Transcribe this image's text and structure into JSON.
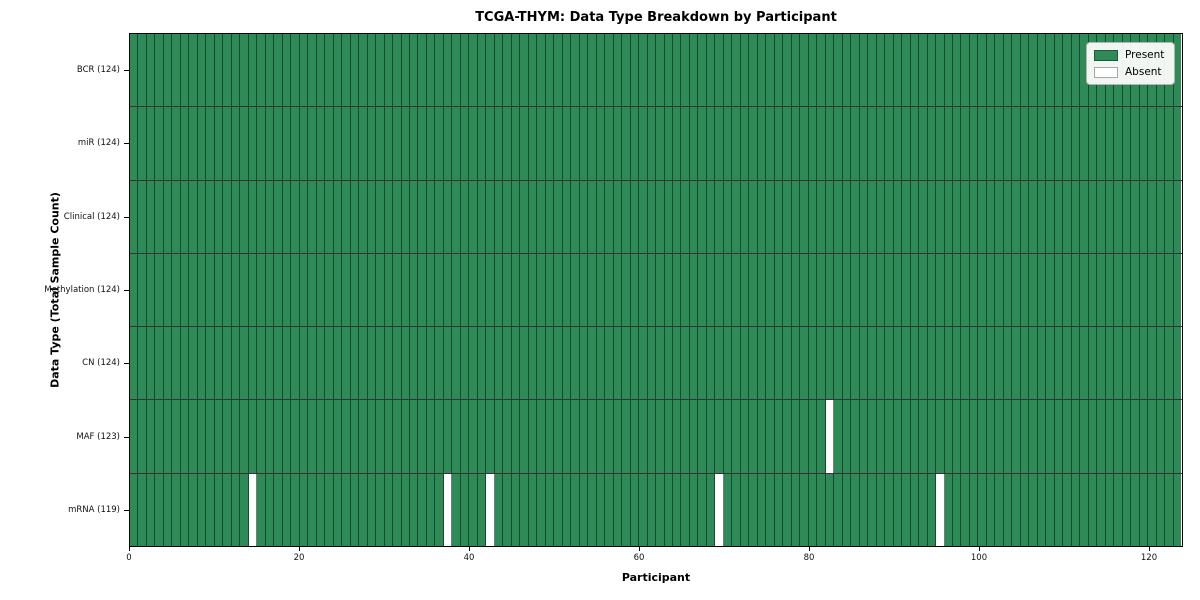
{
  "chart_data": {
    "type": "heatmap",
    "title": "TCGA-THYM: Data Type Breakdown by Participant",
    "xlabel": "Participant",
    "ylabel": "Data Type (Total Sample Count)",
    "n_participants": 124,
    "x_ticks": [
      0,
      20,
      40,
      60,
      80,
      100,
      120
    ],
    "rows": [
      {
        "label": "BCR (124)",
        "data_type": "BCR",
        "total": 124,
        "absent": []
      },
      {
        "label": "miR (124)",
        "data_type": "miR",
        "total": 124,
        "absent": []
      },
      {
        "label": "Clinical (124)",
        "data_type": "Clinical",
        "total": 124,
        "absent": []
      },
      {
        "label": "Methylation (124)",
        "data_type": "Methylation",
        "total": 124,
        "absent": []
      },
      {
        "label": "CN (124)",
        "data_type": "CN",
        "total": 124,
        "absent": []
      },
      {
        "label": "MAF (123)",
        "data_type": "MAF",
        "total": 123,
        "absent": [
          82
        ]
      },
      {
        "label": "mRNA (119)",
        "data_type": "mRNA",
        "total": 119,
        "absent": [
          14,
          37,
          42,
          69,
          95
        ]
      }
    ],
    "legend": [
      {
        "label": "Present",
        "color": "#2e8b57"
      },
      {
        "label": "Absent",
        "color": "#ffffff"
      }
    ],
    "colors": {
      "present": "#2e8b57",
      "absent": "#ffffff",
      "cell_edge": "rgba(5,20,12,0.55)"
    },
    "legend_position": "upper right",
    "grid": "cell-edges"
  }
}
